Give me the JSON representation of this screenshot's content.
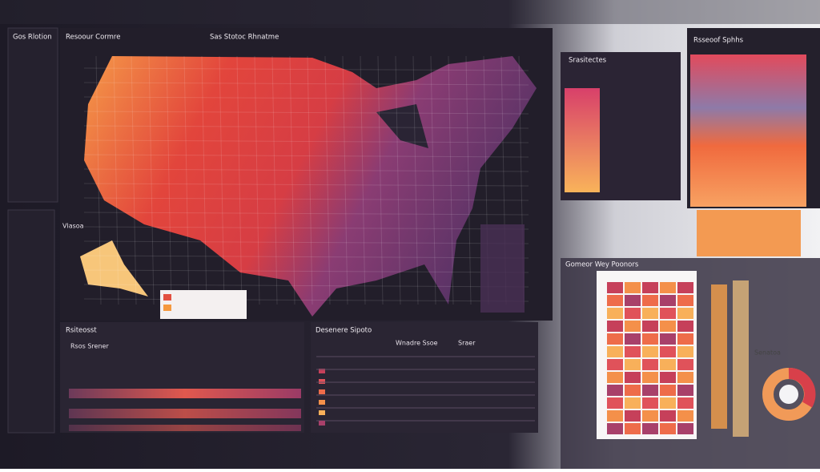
{
  "header": {
    "left_title": "Gos Rlotion",
    "map_title": "Resoour Cormre",
    "map_subtitle": "Sas Stotoc Rhnatme",
    "legend_panel_title": "Srasitectes",
    "right_title": "Rsseoof Sphhs",
    "side_label": "Vlasoa"
  },
  "bottom": {
    "left_title": "Rsiteosst",
    "left_subtitle": "Rsos Srener",
    "mid_title": "Desenere Sipoto",
    "mid_subtitle": "Wnadre Ssoe",
    "mid_col": "Sraer"
  },
  "right_panel": {
    "title": "Gomeor Wey Poonors",
    "side_note": "Senatoa"
  }
}
